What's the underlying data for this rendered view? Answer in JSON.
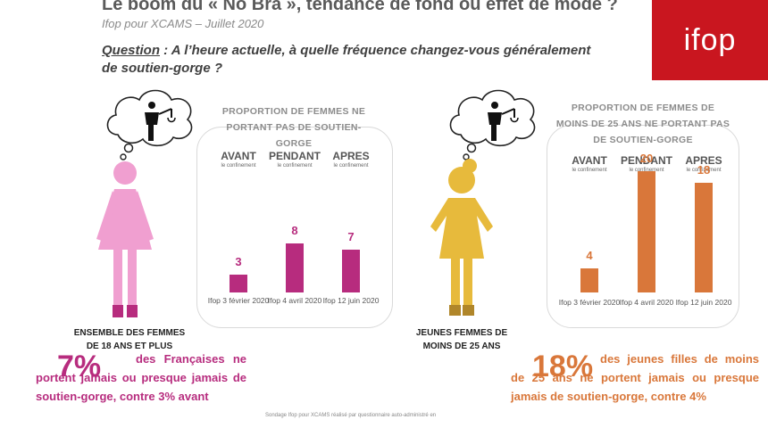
{
  "header": {
    "title": "Le boom du « No Bra », tendance de fond ou effet de mode ?",
    "subtitle": "Ifop pour XCAMS – Juillet 2020",
    "question_label": "Question",
    "question_text": " : A l’heure actuelle, à quelle fréquence changez-vous généralement de soutien-gorge ?",
    "logo": "ifop"
  },
  "colors": {
    "women": "#b72c7e",
    "young": "#d9773a",
    "brand": "#c9161f",
    "women_figure": "#f09fd0",
    "young_figure": "#e7ba3c"
  },
  "chart_data": [
    {
      "type": "bar",
      "title": "PROPORTION DE FEMMES NE PORTANT PAS DE SOUTIEN-GORGE",
      "periods": [
        {
          "name": "AVANT",
          "note": "le confinement"
        },
        {
          "name": "PENDANT",
          "note": "le confinement"
        },
        {
          "name": "APRES",
          "note": "le confinement"
        }
      ],
      "categories": [
        "Ifop 3 février 2020",
        "Ifop 4 avril 2020",
        "Ifop 12 juin 2020"
      ],
      "values": [
        3,
        8,
        7
      ],
      "group_label": "ENSEMBLE DES FEMMES DE 18 ANS ET PLUS",
      "color": "#b72c7e",
      "ylim": [
        0,
        22
      ]
    },
    {
      "type": "bar",
      "title": "PROPORTION DE FEMMES DE MOINS DE 25 ANS NE PORTANT PAS DE SOUTIEN-GORGE",
      "periods": [
        {
          "name": "AVANT",
          "note": "le confinement"
        },
        {
          "name": "PENDANT",
          "note": "le confinement"
        },
        {
          "name": "APRES",
          "note": "le confinement"
        }
      ],
      "categories": [
        "Ifop 3 février 2020",
        "Ifop 4 avril 2020",
        "Ifop 12 juin 2020"
      ],
      "values": [
        4,
        20,
        18
      ],
      "group_label": "JEUNES FEMMES DE MOINS DE 25 ANS",
      "color": "#d9773a",
      "ylim": [
        0,
        22
      ]
    }
  ],
  "stats": {
    "left_pct": "7%",
    "left_text": "des Françaises ne portent jamais ou presque jamais de soutien-gorge, contre 3% avant",
    "right_pct": "18%",
    "right_text": "des jeunes filles de moins de 25 ans ne portent jamais ou presque jamais de soutien-gorge, contre 4%"
  },
  "footnote": "Sondage Ifop pour XCAMS réalisé par questionnaire auto-administré en"
}
